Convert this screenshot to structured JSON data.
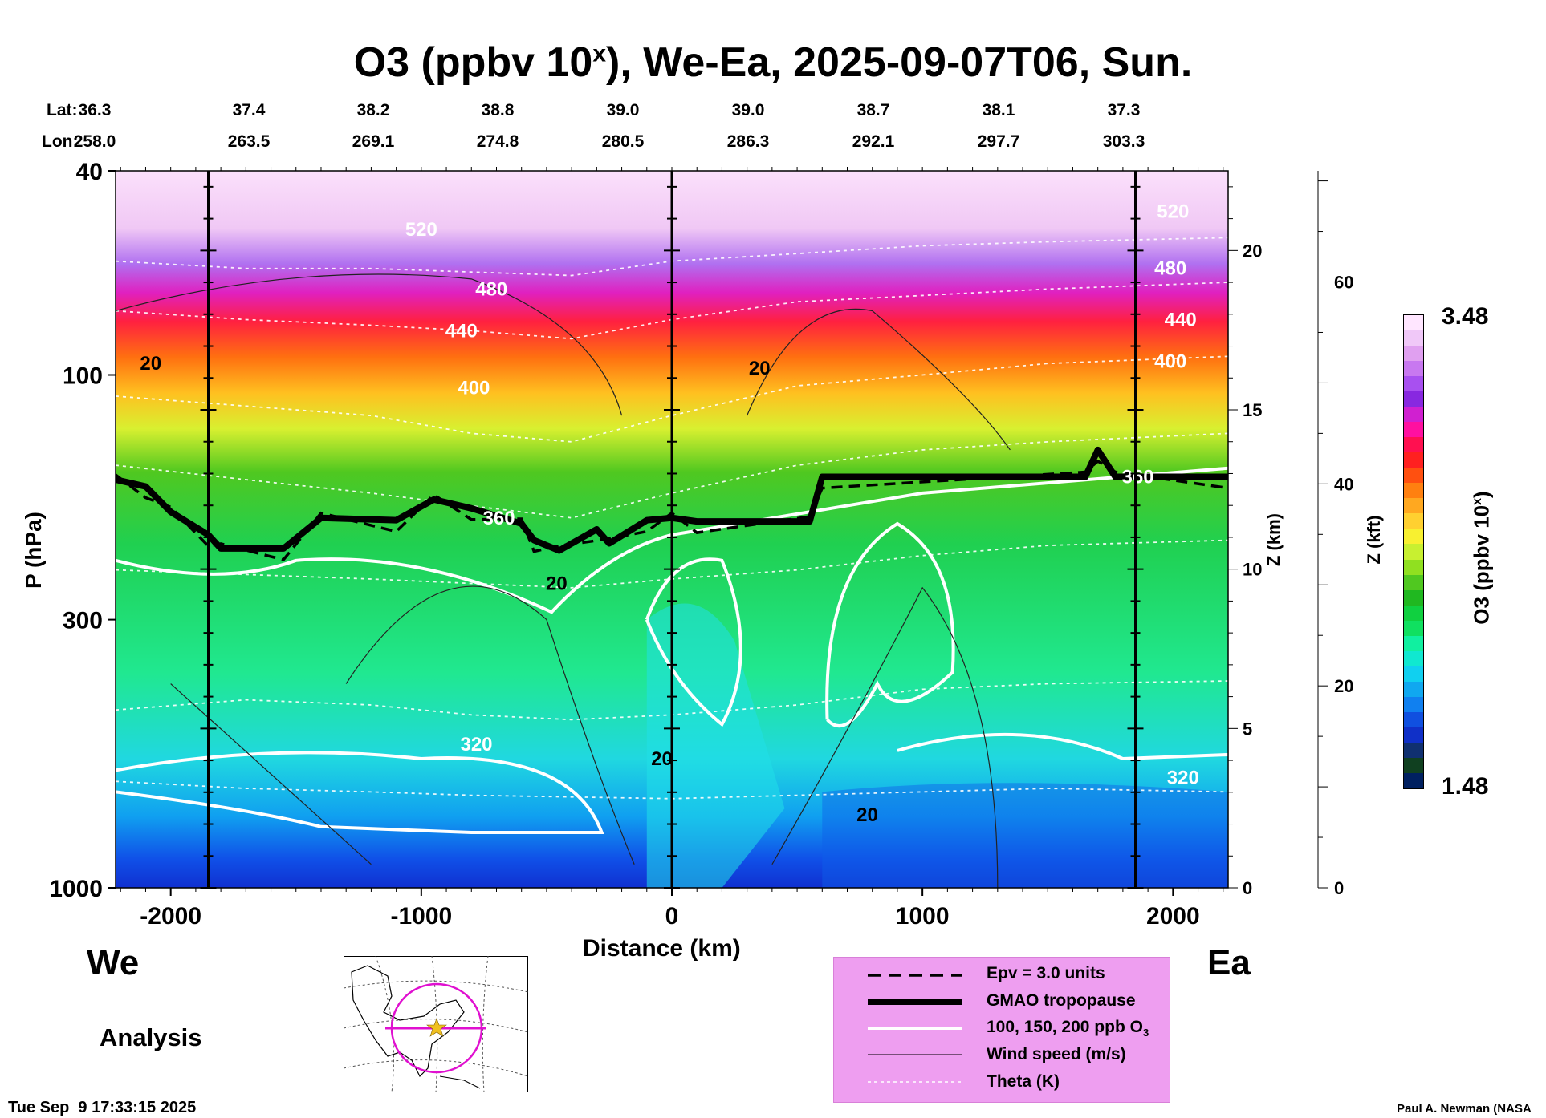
{
  "title": {
    "prefix": "O3 (ppbv 10",
    "sup": "x",
    "suffix": "), We-Ea, 2025-09-07T06, Sun."
  },
  "lat": {
    "label": "Lat:",
    "values": [
      "36.3",
      "37.4",
      "38.2",
      "38.8",
      "39.0",
      "39.0",
      "38.7",
      "38.1",
      "37.3"
    ]
  },
  "lon": {
    "label": "Lon:",
    "values": [
      "258.0",
      "263.5",
      "269.1",
      "274.8",
      "280.5",
      "286.3",
      "292.1",
      "297.7",
      "303.3"
    ]
  },
  "direction": {
    "west": "We",
    "east": "Ea"
  },
  "analysis_label": "Analysis",
  "timestamp": "Tue Sep  9 17:33:15 2025",
  "credit": "Paul A. Newman (NASA",
  "legend": [
    {
      "label": "Epv = 3.0 units",
      "style": "dashed-black"
    },
    {
      "label": "GMAO tropopause",
      "style": "thick-black"
    },
    {
      "label": "100, 150, 200 ppb O3",
      "style": "thick-white"
    },
    {
      "label": "Wind speed (m/s)",
      "style": "thin-black"
    },
    {
      "label": "Theta (K)",
      "style": "dotted-white"
    }
  ],
  "colorbar": {
    "label": "O3 (ppbv 10x)",
    "max": "3.48",
    "min": "1.48",
    "colors": [
      "#ffe6ff",
      "#f0c8f8",
      "#e0a0f0",
      "#c878f0",
      "#a850f0",
      "#8828e0",
      "#d020d0",
      "#ff10a0",
      "#ff1050",
      "#ff2020",
      "#ff5010",
      "#ff8010",
      "#ffa820",
      "#ffd030",
      "#f8f030",
      "#c8f030",
      "#90e020",
      "#50c820",
      "#20b820",
      "#10d040",
      "#10e060",
      "#10f0a0",
      "#10e8d0",
      "#10d0f0",
      "#10a8f0",
      "#1080f0",
      "#1050e0",
      "#1030c8",
      "#103070",
      "#104020",
      "#002060"
    ]
  },
  "chart_data": {
    "type": "heatmap",
    "title": "O3 (ppbv 10x), We-Ea, 2025-09-07T06, Sun.",
    "xlabel": "Distance (km)",
    "ylabel": "P (hPa)",
    "y2label": "Z (km)",
    "y3label": "Z (kft)",
    "xlim": [
      -2220,
      2220
    ],
    "ylim": [
      1000,
      40
    ],
    "y_scale": "log",
    "x_ticks": [
      -2000,
      -1000,
      0,
      1000,
      2000
    ],
    "y_ticks": [
      40,
      100,
      300,
      1000
    ],
    "z_km_ticks": [
      0,
      5,
      10,
      15,
      20
    ],
    "z_kft_ticks": [
      0,
      20,
      40,
      60
    ],
    "section_markers_km": [
      -1850,
      0,
      1850
    ],
    "tropopause_hpa": [
      {
        "x": -2220,
        "p": 160
      },
      {
        "x": -2100,
        "p": 165
      },
      {
        "x": -2000,
        "p": 185
      },
      {
        "x": -1850,
        "p": 205
      },
      {
        "x": -1800,
        "p": 218
      },
      {
        "x": -1550,
        "p": 218
      },
      {
        "x": -1400,
        "p": 190
      },
      {
        "x": -1100,
        "p": 192
      },
      {
        "x": -950,
        "p": 175
      },
      {
        "x": -800,
        "p": 182
      },
      {
        "x": -600,
        "p": 195
      },
      {
        "x": -550,
        "p": 210
      },
      {
        "x": -450,
        "p": 220
      },
      {
        "x": -300,
        "p": 200
      },
      {
        "x": -250,
        "p": 213
      },
      {
        "x": -100,
        "p": 192
      },
      {
        "x": 0,
        "p": 190
      },
      {
        "x": 100,
        "p": 193
      },
      {
        "x": 550,
        "p": 193
      },
      {
        "x": 600,
        "p": 158
      },
      {
        "x": 1650,
        "p": 158
      },
      {
        "x": 1700,
        "p": 140
      },
      {
        "x": 1770,
        "p": 158
      },
      {
        "x": 2220,
        "p": 158
      }
    ],
    "theta_levels": [
      "320",
      "360",
      "400",
      "440",
      "480",
      "520"
    ],
    "wind_speed_labels": [
      "20",
      "20",
      "20",
      "20",
      "20"
    ],
    "colorbar_range": [
      "1.48",
      "3.48"
    ]
  }
}
